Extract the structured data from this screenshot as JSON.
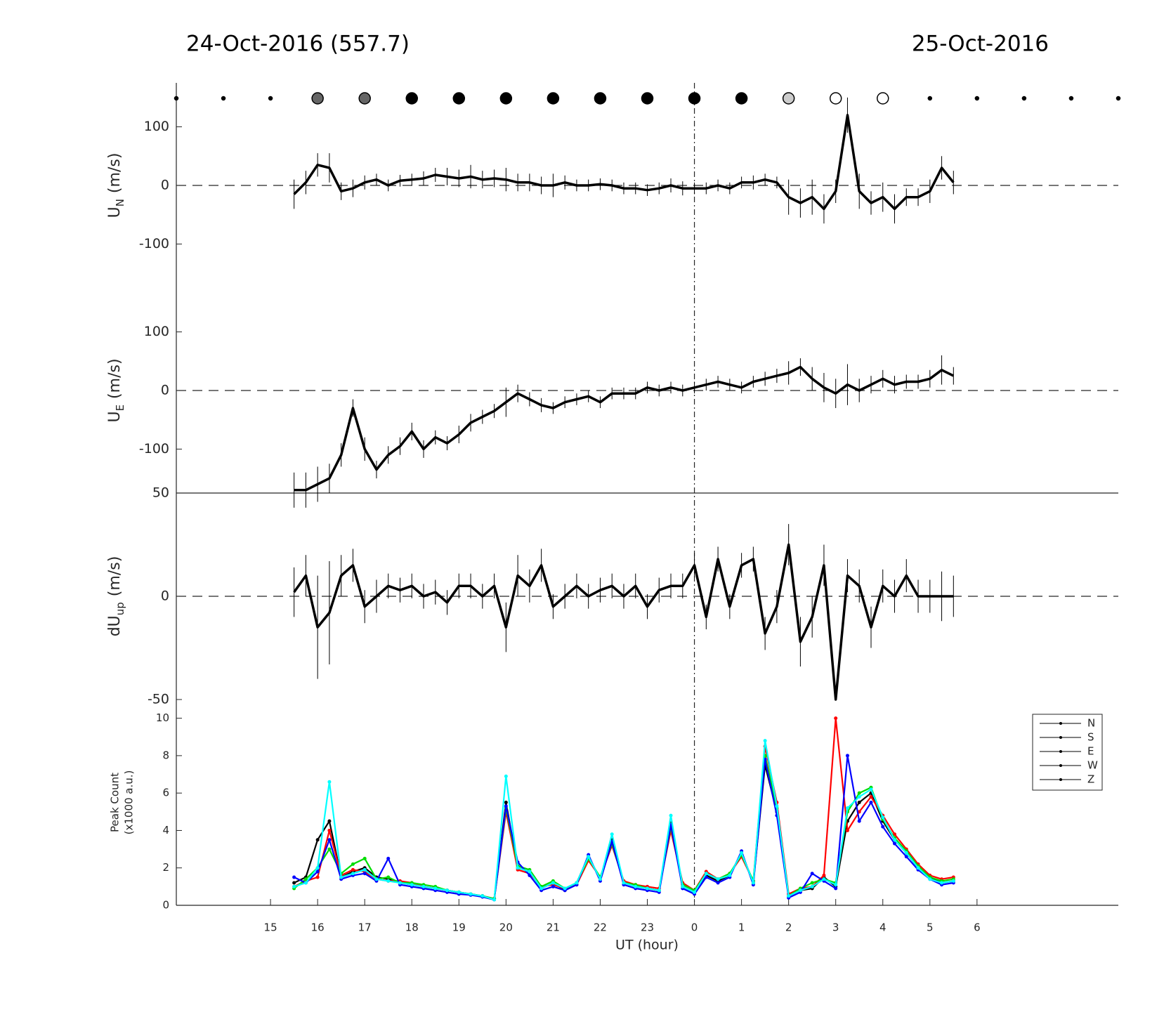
{
  "titles": {
    "left": "24-Oct-2016 (557.7)",
    "right": "25-Oct-2016"
  },
  "xaxis": {
    "label": "UT (hour)",
    "xlim": [
      13,
      33
    ],
    "xticks": [
      15,
      16,
      17,
      18,
      19,
      20,
      21,
      22,
      23,
      {
        "value": 24,
        "label": "0"
      },
      {
        "value": 25,
        "label": "1"
      },
      {
        "value": 26,
        "label": "2"
      },
      {
        "value": 27,
        "label": "3"
      },
      {
        "value": 28,
        "label": "4"
      },
      {
        "value": 29,
        "label": "5"
      },
      {
        "value": 30,
        "label": "6"
      }
    ],
    "reference_line_x": 24,
    "x": [
      15.5,
      15.75,
      16,
      16.25,
      16.5,
      16.75,
      17,
      17.25,
      17.5,
      17.75,
      18,
      18.25,
      18.5,
      18.75,
      19,
      19.25,
      19.5,
      19.75,
      20,
      20.25,
      20.5,
      20.75,
      21,
      21.25,
      21.5,
      21.75,
      22,
      22.25,
      22.5,
      22.75,
      23,
      23.25,
      23.5,
      23.75,
      24,
      24.25,
      24.5,
      24.75,
      25,
      25.25,
      25.5,
      25.75,
      26,
      26.25,
      26.5,
      26.75,
      27,
      27.25,
      27.5,
      27.75,
      28,
      28.25,
      28.5,
      28.75,
      29,
      29.25,
      29.5
    ]
  },
  "sky": {
    "x": [
      13,
      14,
      15,
      16,
      17,
      18,
      19,
      20,
      21,
      22,
      23,
      24,
      25,
      26,
      27,
      28,
      29,
      30,
      31,
      32,
      33
    ],
    "fill": [
      null,
      null,
      null,
      "#666666",
      "#666666",
      "#000000",
      "#000000",
      "#000000",
      "#000000",
      "#000000",
      "#000000",
      "#000000",
      "#000000",
      "#cccccc",
      "#ffffff",
      "#ffffff",
      null,
      null,
      null,
      null,
      null
    ]
  },
  "chart_data": [
    {
      "type": "line",
      "ylabel": {
        "main": "U",
        "sub": "N",
        "unit": "(m/s)"
      },
      "ylim": [
        -175,
        175
      ],
      "yticks": [
        -100,
        0,
        100
      ],
      "zero_line": true,
      "series": [
        {
          "color": "#000000",
          "values": [
            -15,
            5,
            35,
            30,
            -10,
            -5,
            5,
            10,
            0,
            8,
            10,
            12,
            18,
            15,
            12,
            15,
            10,
            12,
            10,
            5,
            5,
            0,
            0,
            5,
            0,
            0,
            2,
            0,
            -5,
            -5,
            -8,
            -5,
            0,
            -5,
            -5,
            -5,
            0,
            -5,
            5,
            5,
            10,
            5,
            -20,
            -30,
            -20,
            -40,
            -10,
            120,
            -10,
            -30,
            -20,
            -40,
            -20,
            -20,
            -10,
            30,
            5
          ],
          "errors": [
            25,
            20,
            20,
            25,
            15,
            15,
            12,
            10,
            10,
            10,
            10,
            12,
            12,
            15,
            15,
            20,
            15,
            15,
            20,
            15,
            15,
            15,
            20,
            12,
            10,
            10,
            10,
            10,
            10,
            10,
            10,
            10,
            12,
            12,
            10,
            10,
            10,
            10,
            10,
            12,
            10,
            10,
            30,
            25,
            30,
            25,
            20,
            30,
            30,
            20,
            25,
            25,
            15,
            15,
            20,
            20,
            20
          ]
        }
      ]
    },
    {
      "type": "line",
      "ylabel": {
        "main": "U",
        "sub": "E",
        "unit": "(m/s)"
      },
      "ylim": [
        -175,
        175
      ],
      "yticks": [
        -100,
        0,
        100
      ],
      "zero_line": true,
      "series": [
        {
          "color": "#000000",
          "values": [
            -170,
            -170,
            -160,
            -150,
            -110,
            -30,
            -100,
            -135,
            -110,
            -95,
            -70,
            -100,
            -80,
            -90,
            -75,
            -55,
            -45,
            -35,
            -20,
            -5,
            -15,
            -25,
            -30,
            -20,
            -15,
            -10,
            -20,
            -5,
            -5,
            -5,
            5,
            0,
            5,
            0,
            5,
            10,
            15,
            10,
            5,
            15,
            20,
            25,
            30,
            40,
            20,
            5,
            -5,
            10,
            0,
            10,
            20,
            10,
            15,
            15,
            20,
            35,
            25
          ],
          "errors": [
            30,
            30,
            30,
            25,
            20,
            15,
            20,
            15,
            15,
            15,
            15,
            15,
            12,
            12,
            15,
            15,
            12,
            12,
            25,
            15,
            12,
            12,
            10,
            10,
            10,
            10,
            10,
            10,
            10,
            10,
            10,
            10,
            10,
            10,
            10,
            10,
            10,
            10,
            10,
            10,
            12,
            12,
            20,
            15,
            20,
            25,
            25,
            35,
            20,
            15,
            15,
            15,
            12,
            12,
            15,
            25,
            15
          ]
        }
      ]
    },
    {
      "type": "line",
      "ylabel": {
        "main": "dU",
        "sub": "up",
        "unit": "(m/s)"
      },
      "ylim": [
        -50,
        50
      ],
      "yticks": [
        -50,
        0,
        50
      ],
      "zero_line": true,
      "series": [
        {
          "color": "#000000",
          "values": [
            2,
            10,
            -15,
            -8,
            10,
            15,
            -5,
            0,
            5,
            3,
            5,
            0,
            2,
            -3,
            5,
            5,
            0,
            5,
            -15,
            10,
            5,
            15,
            -5,
            0,
            5,
            0,
            3,
            5,
            0,
            5,
            -5,
            3,
            5,
            5,
            15,
            -10,
            18,
            -5,
            15,
            18,
            -18,
            -5,
            25,
            -22,
            -10,
            15,
            -50,
            10,
            5,
            -15,
            5,
            0,
            10,
            0,
            0,
            0,
            0
          ],
          "errors": [
            12,
            10,
            25,
            25,
            10,
            8,
            8,
            8,
            6,
            6,
            6,
            6,
            6,
            6,
            6,
            6,
            6,
            6,
            12,
            10,
            8,
            8,
            6,
            6,
            6,
            6,
            6,
            6,
            6,
            6,
            6,
            6,
            6,
            6,
            6,
            6,
            6,
            6,
            6,
            6,
            8,
            8,
            10,
            12,
            10,
            10,
            0,
            8,
            8,
            10,
            8,
            8,
            8,
            8,
            8,
            12,
            10
          ]
        }
      ]
    },
    {
      "type": "line",
      "ylabel": {
        "lines": [
          "Peak Count",
          "(x1000 a.u.)"
        ]
      },
      "ylim": [
        0,
        11
      ],
      "yticks": [
        0,
        2,
        4,
        6,
        8,
        10
      ],
      "legend": "upper right",
      "markers": true,
      "series": [
        {
          "name": "N",
          "color": "#000000",
          "values": [
            1.2,
            1.5,
            3.5,
            4.5,
            1.5,
            1.8,
            2.0,
            1.5,
            1.4,
            1.2,
            1.1,
            1.0,
            0.9,
            0.8,
            0.7,
            0.6,
            0.5,
            0.35,
            5.5,
            2.0,
            1.8,
            0.9,
            1.2,
            0.8,
            1.2,
            2.6,
            1.4,
            3.5,
            1.2,
            1.0,
            0.9,
            0.8,
            4.4,
            1.0,
            0.7,
            1.6,
            1.3,
            1.6,
            2.8,
            1.2,
            7.5,
            5.0,
            0.5,
            0.8,
            0.9,
            1.5,
            1.0,
            4.5,
            5.5,
            6.0,
            4.5,
            3.5,
            2.8,
            2.0,
            1.5,
            1.2,
            1.3
          ]
        },
        {
          "name": "S",
          "color": "#ff0000",
          "values": [
            1.0,
            1.3,
            1.5,
            4.0,
            1.6,
            1.9,
            1.8,
            1.4,
            1.3,
            1.3,
            1.2,
            1.0,
            0.9,
            0.8,
            0.7,
            0.6,
            0.5,
            0.35,
            5.0,
            1.9,
            1.7,
            1.0,
            1.1,
            0.9,
            1.1,
            2.4,
            1.5,
            3.2,
            1.3,
            1.1,
            1.0,
            0.9,
            4.0,
            1.2,
            0.8,
            1.8,
            1.4,
            1.7,
            2.6,
            1.3,
            8.5,
            5.5,
            0.6,
            0.9,
            1.0,
            1.6,
            10.0,
            4.0,
            5.0,
            5.8,
            4.8,
            3.8,
            3.0,
            2.2,
            1.6,
            1.4,
            1.5
          ]
        },
        {
          "name": "E",
          "color": "#00dd00",
          "values": [
            0.9,
            1.4,
            2.0,
            3.0,
            1.7,
            2.2,
            2.5,
            1.4,
            1.5,
            1.2,
            1.2,
            1.1,
            1.0,
            0.8,
            0.7,
            0.6,
            0.5,
            0.35,
            5.2,
            2.1,
            1.9,
            1.0,
            1.3,
            0.9,
            1.2,
            2.5,
            1.5,
            3.3,
            1.2,
            1.1,
            0.9,
            0.8,
            4.2,
            1.1,
            0.8,
            1.7,
            1.4,
            1.7,
            2.7,
            1.3,
            8.0,
            5.2,
            0.5,
            0.9,
            1.2,
            1.4,
            1.2,
            5.0,
            6.0,
            6.3,
            4.6,
            3.6,
            2.9,
            2.1,
            1.5,
            1.3,
            1.4
          ]
        },
        {
          "name": "W",
          "color": "#0000ff",
          "values": [
            1.5,
            1.2,
            1.8,
            3.5,
            1.4,
            1.6,
            1.7,
            1.3,
            2.5,
            1.1,
            1.0,
            0.9,
            0.8,
            0.7,
            0.6,
            0.55,
            0.45,
            0.3,
            5.3,
            2.3,
            1.6,
            0.8,
            1.0,
            0.8,
            1.1,
            2.7,
            1.3,
            3.4,
            1.1,
            0.9,
            0.8,
            0.7,
            4.3,
            0.9,
            0.6,
            1.5,
            1.2,
            1.5,
            2.9,
            1.1,
            7.8,
            4.8,
            0.4,
            0.7,
            1.7,
            1.3,
            0.9,
            8.0,
            4.5,
            5.5,
            4.2,
            3.3,
            2.6,
            1.9,
            1.4,
            1.1,
            1.2
          ]
        },
        {
          "name": "Z",
          "color": "#00ffff",
          "values": [
            1.0,
            1.2,
            2.0,
            6.6,
            1.5,
            1.7,
            1.9,
            1.4,
            1.3,
            1.2,
            1.1,
            1.0,
            0.9,
            0.8,
            0.7,
            0.6,
            0.5,
            0.3,
            6.9,
            2.0,
            1.8,
            0.9,
            1.2,
            0.9,
            1.2,
            2.6,
            1.4,
            3.8,
            1.2,
            1.0,
            0.9,
            0.8,
            4.8,
            1.0,
            0.7,
            1.7,
            1.4,
            1.6,
            2.8,
            1.2,
            8.8,
            5.3,
            0.5,
            0.8,
            1.0,
            1.4,
            1.1,
            5.2,
            5.8,
            6.2,
            4.7,
            3.5,
            2.8,
            2.0,
            1.4,
            1.2,
            1.3
          ]
        }
      ]
    }
  ]
}
